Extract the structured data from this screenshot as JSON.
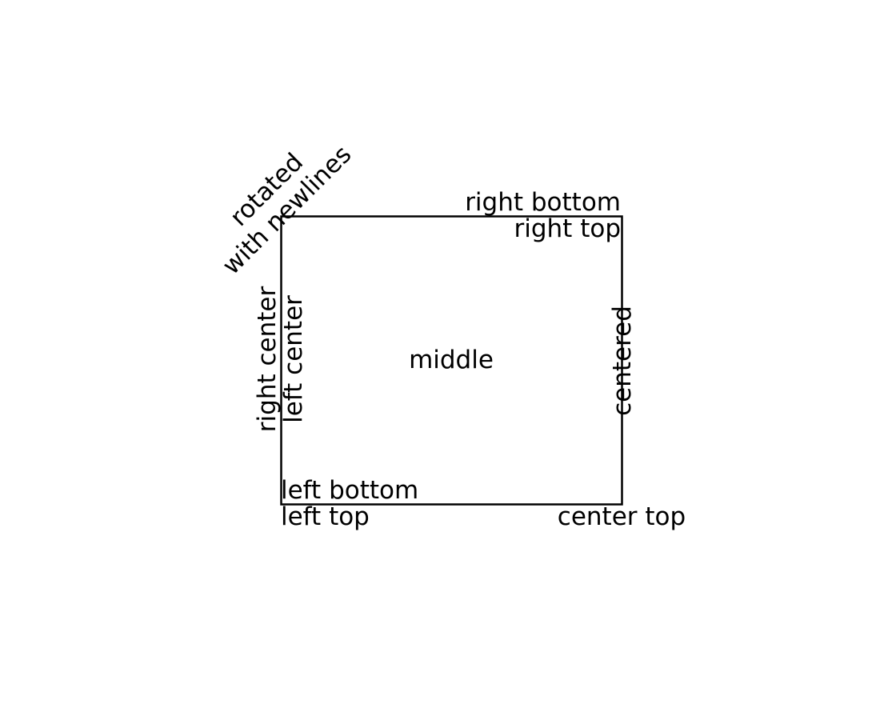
{
  "colors": {
    "background": "#ffffff",
    "frame": "#000000",
    "text": "#000000"
  },
  "labels": {
    "right_bottom": "right bottom",
    "right_top": "right top",
    "rotated_line1": "rotated",
    "rotated_line2": "with newlines",
    "right_center": "right center",
    "left_center": "left center",
    "middle": "middle",
    "centered": "centered",
    "left_bottom": "left bottom",
    "left_top": "left top",
    "center_top": "center top"
  }
}
